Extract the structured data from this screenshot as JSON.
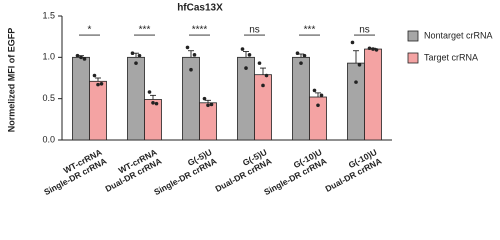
{
  "chart_data": {
    "type": "bar",
    "title": "hfCas13X",
    "y_label": "Normelized  MFI of EGFP",
    "categories": [
      [
        "WT-crRNA",
        "Single-DR crRNA"
      ],
      [
        "WT-crRNA",
        "Dual-DR crRNA"
      ],
      [
        "G(-5)U",
        "Single-DR crRNA"
      ],
      [
        "G(-5)U",
        "Dual-DR crRNA"
      ],
      [
        "G(-10)U",
        "Single-DR crRNA"
      ],
      [
        "G(-10)U",
        "Dual-DR crRNA"
      ]
    ],
    "series": [
      {
        "name": "Nontarget crRNA",
        "color": "#a6a6a6",
        "values": [
          1.0,
          1.0,
          1.0,
          1.0,
          1.0,
          0.93
        ],
        "errors": [
          0.02,
          0.05,
          0.08,
          0.07,
          0.04,
          0.15
        ],
        "points": [
          [
            1.02,
            1.0,
            0.98
          ],
          [
            1.05,
            0.93,
            1.02
          ],
          [
            1.12,
            0.85,
            1.03
          ],
          [
            1.1,
            0.87,
            1.03
          ],
          [
            1.05,
            0.93,
            1.02
          ],
          [
            1.18,
            0.7,
            0.91
          ]
        ]
      },
      {
        "name": "Target crRNA",
        "color": "#f4a3a3",
        "values": [
          0.71,
          0.49,
          0.45,
          0.79,
          0.52,
          1.1
        ],
        "errors": [
          0.04,
          0.05,
          0.03,
          0.08,
          0.05,
          0.01
        ],
        "points": [
          [
            0.78,
            0.67,
            0.68
          ],
          [
            0.58,
            0.45,
            0.44
          ],
          [
            0.5,
            0.42,
            0.43
          ],
          [
            0.93,
            0.66,
            0.78
          ],
          [
            0.6,
            0.42,
            0.54
          ],
          [
            1.11,
            1.1,
            1.09
          ]
        ]
      }
    ],
    "annotations": [
      "*",
      "***",
      "****",
      "ns",
      "***",
      "ns"
    ],
    "ylim": [
      0,
      1.5
    ],
    "yticks": [
      {
        "value": 0,
        "label": "0.0"
      },
      0.5,
      {
        "value": 1.0,
        "label": "1.0"
      },
      1.5
    ],
    "legend": "right"
  }
}
